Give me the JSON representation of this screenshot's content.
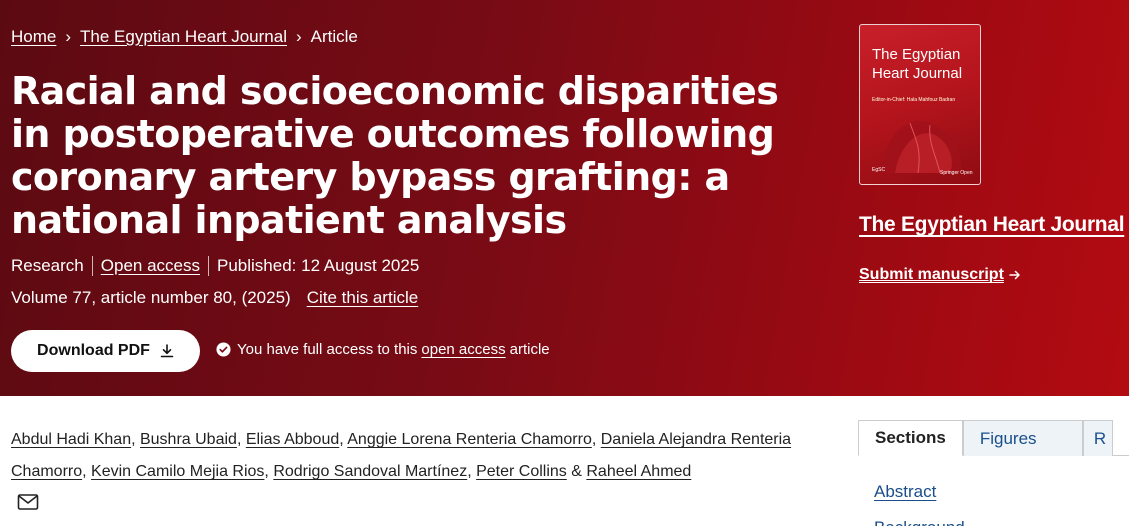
{
  "breadcrumb": {
    "home": "Home",
    "journal": "The Egyptian Heart Journal",
    "current": "Article"
  },
  "article": {
    "title": "Racial and socioeconomic disparities in postoperative outcomes following coronary artery bypass grafting: a national inpatient analysis",
    "type": "Research",
    "open_access": "Open access",
    "published": "Published: 12 August 2025",
    "volume": "Volume 77, article number 80, (2025)",
    "cite": "Cite this article"
  },
  "download": {
    "label": "Download PDF",
    "icon": "download-icon"
  },
  "access_notice": {
    "prefix": "You have full access to this",
    "link": "open access",
    "suffix": "article",
    "icon": "check-circle-icon"
  },
  "cover": {
    "title_line1": "The Egyptian",
    "title_line2": "Heart Journal",
    "editor": "Editor-in-Chief: Hala Mahfouz Badran",
    "logo_left": "EgSC",
    "logo_right": "Springer Open"
  },
  "sidebar": {
    "journal_link": "The Egyptian Heart Journal",
    "submit": "Submit manuscript"
  },
  "authors": [
    "Abdul Hadi Khan",
    "Bushra Ubaid",
    "Elias Abboud",
    "Anggie Lorena Renteria Chamorro",
    "Daniela Alejandra Renteria Chamorro",
    "Kevin Camilo Mejia Rios",
    "Rodrigo Sandoval Martínez",
    "Peter Collins",
    "Raheel Ahmed"
  ],
  "authors_sep": ", ",
  "authors_and": " & ",
  "tabs": [
    "Sections",
    "Figures",
    "R"
  ],
  "sections": [
    "Abstract",
    "Background"
  ],
  "colors": {
    "hero_dark": "#5c0a12",
    "hero_light": "#b30b12",
    "link_blue": "#1a4f8a"
  }
}
